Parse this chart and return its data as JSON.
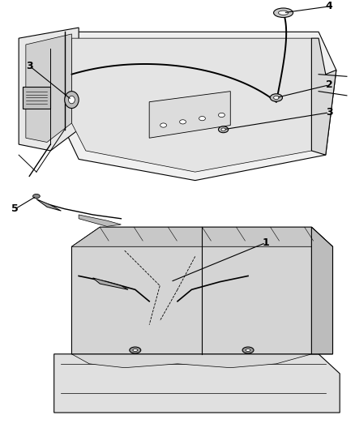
{
  "background_color": "#ffffff",
  "line_color": "#000000",
  "figsize": [
    4.38,
    5.33
  ],
  "dpi": 100
}
